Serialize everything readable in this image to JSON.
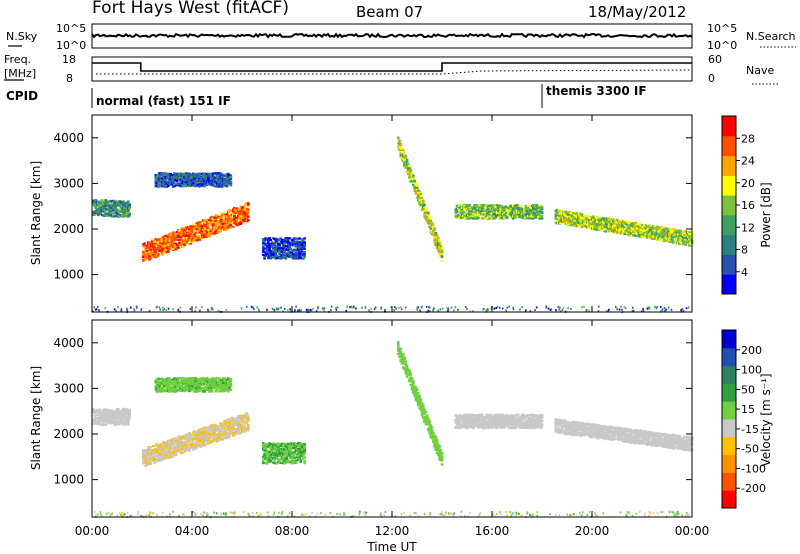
{
  "header": {
    "station": "Fort Hays West (fitACF)",
    "beam": "Beam 07",
    "date": "18/May/2012"
  },
  "top_panels": {
    "nsky_label": "N.Sky",
    "nsky_ticks": [
      "10^5",
      "10^0"
    ],
    "nsearch_label": "N.Search",
    "nsearch_ticks": [
      "10^5",
      "10^0"
    ],
    "freq_label_line1": "Freq.",
    "freq_label_line2": "[MHz]",
    "freq_ticks": [
      "18",
      "8"
    ],
    "nave_label": "Nave",
    "nave_ticks": [
      "60",
      "0"
    ],
    "cpid_label": "CPID",
    "cpid_modes": [
      {
        "name": "normal (fast) 151 IF",
        "start_hour": 0,
        "end_hour": 18.0
      },
      {
        "name": "themis 3300 IF",
        "start_hour": 18.0,
        "end_hour": 24
      }
    ]
  },
  "power_colorbar": {
    "label": "Power [dB]",
    "ticks": [
      "4",
      "8",
      "12",
      "16",
      "20",
      "24",
      "28"
    ],
    "colors": [
      "#0000ff",
      "#2b4fb0",
      "#2f7f7f",
      "#3da060",
      "#7fc040",
      "#ffff00",
      "#ffa500",
      "#ff5000",
      "#ff0000"
    ]
  },
  "velocity_colorbar": {
    "label": "Velocity [m s⁻¹]",
    "ticks": [
      "-200",
      "-100",
      "-50",
      "-15",
      "15",
      "50",
      "100",
      "200"
    ],
    "colors": [
      "#ff0000",
      "#ff5000",
      "#ff9000",
      "#ffc000",
      "#c8c8c8",
      "#70d040",
      "#30a040",
      "#2f7f5f",
      "#2050b0",
      "#0000d0"
    ]
  },
  "chart_data": [
    {
      "type": "heatmap",
      "title": "",
      "xlabel": "Time UT",
      "ylabel": "Slant Range [km]",
      "quantity": "Power [dB]",
      "xlim": [
        0,
        24
      ],
      "ylim": [
        180,
        4500
      ],
      "x_ticks": [
        "00:00",
        "04:00",
        "08:00",
        "12:00",
        "16:00",
        "20:00",
        "00:00"
      ],
      "y_ticks": [
        "1000",
        "2000",
        "3000",
        "4000"
      ],
      "bands": [
        {
          "x": [
            0.0,
            1.5
          ],
          "y_center": [
            2500,
            2450
          ],
          "width": 350,
          "value": 12
        },
        {
          "x": [
            2.0,
            6.2
          ],
          "y_center": [
            1500,
            2400
          ],
          "width": 400,
          "value": 26
        },
        {
          "x": [
            2.5,
            5.5
          ],
          "y_center": [
            3100,
            3100
          ],
          "width": 300,
          "value": 8
        },
        {
          "x": [
            6.8,
            8.5
          ],
          "y_center": [
            1600,
            1600
          ],
          "width": 450,
          "value": 6
        },
        {
          "x": [
            12.2,
            14.0
          ],
          "y_center": [
            3900,
            1400
          ],
          "width": 300,
          "value": 18
        },
        {
          "x": [
            14.5,
            18.0
          ],
          "y_center": [
            2400,
            2400
          ],
          "width": 300,
          "value": 16
        },
        {
          "x": [
            18.5,
            24.0
          ],
          "y_center": [
            2300,
            1800
          ],
          "width": 300,
          "value": 18
        }
      ]
    },
    {
      "type": "heatmap",
      "title": "",
      "xlabel": "Time UT",
      "ylabel": "Slant Range [km]",
      "quantity": "Velocity [m s⁻¹]",
      "xlim": [
        0,
        24
      ],
      "ylim": [
        180,
        4500
      ],
      "x_ticks": [
        "00:00",
        "04:00",
        "08:00",
        "12:00",
        "16:00",
        "20:00",
        "00:00"
      ],
      "y_ticks": [
        "1000",
        "2000",
        "3000",
        "4000"
      ],
      "bands": [
        {
          "x": [
            0.0,
            1.5
          ],
          "y_center": [
            2400,
            2400
          ],
          "width": 350,
          "value": 0
        },
        {
          "x": [
            2.0,
            6.2
          ],
          "y_center": [
            1500,
            2300
          ],
          "width": 400,
          "value": -10
        },
        {
          "x": [
            2.5,
            5.5
          ],
          "y_center": [
            3100,
            3100
          ],
          "width": 300,
          "value": 40
        },
        {
          "x": [
            6.8,
            8.5
          ],
          "y_center": [
            1600,
            1600
          ],
          "width": 450,
          "value": 50
        },
        {
          "x": [
            12.2,
            14.0
          ],
          "y_center": [
            3900,
            1400
          ],
          "width": 300,
          "value": 30
        },
        {
          "x": [
            14.5,
            18.0
          ],
          "y_center": [
            2300,
            2300
          ],
          "width": 300,
          "value": 0
        },
        {
          "x": [
            18.5,
            24.0
          ],
          "y_center": [
            2200,
            1800
          ],
          "width": 300,
          "value": 0
        }
      ]
    }
  ]
}
